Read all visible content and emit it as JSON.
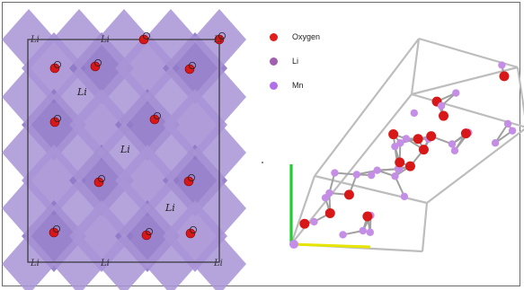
{
  "legend": [
    {
      "label": "Oxygen",
      "color": "#e01e1e"
    },
    {
      "label": "Li",
      "color": "#a05fb0"
    },
    {
      "label": "Mn",
      "color": "#b070e8"
    }
  ],
  "left_panel": {
    "atom_label": "Li",
    "inner_li_labels": [
      "Li",
      "Li",
      "Li"
    ]
  },
  "colors": {
    "polyhedra": "#a894d6",
    "polyhedra_dark": "#8f78c8",
    "oxygen": "#d81818",
    "bond": "#a0a0a0",
    "cell_edge": "#bdbdbd",
    "li_atom": "#c58ee6",
    "axis_green": "#22cc33",
    "axis_yellow": "#e5e500"
  }
}
